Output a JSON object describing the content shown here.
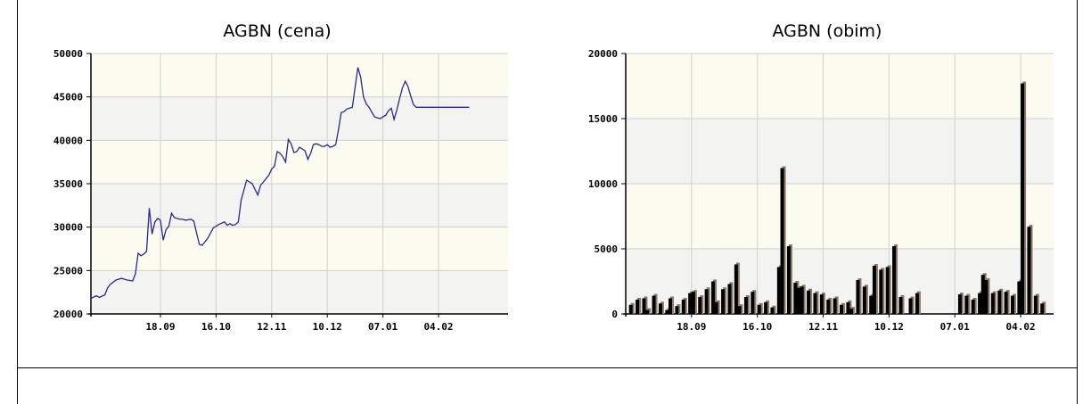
{
  "charts": [
    {
      "chart_data": {
        "type": "line",
        "title": "AGBN (cena)",
        "xlabel": "",
        "ylabel": "",
        "ylim": [
          20000,
          50000
        ],
        "yticks": [
          20000,
          25000,
          30000,
          35000,
          40000,
          45000,
          50000
        ],
        "xtick_labels": [
          "18.09",
          "16.10",
          "12.11",
          "10.12",
          "07.01",
          "04.02"
        ],
        "x_domain": [
          0,
          150
        ],
        "xtick_positions": [
          25,
          45,
          65,
          85,
          105,
          125
        ],
        "grid": true,
        "series": [
          {
            "color": "#2a2a8c",
            "x": [
              0,
              2,
              3,
              5,
              6,
              7,
              9,
              11,
              13,
              15,
              16,
              17,
              18,
              19,
              20,
              21,
              22,
              23,
              24,
              25,
              26,
              27,
              28,
              29,
              30,
              31,
              32,
              33,
              34,
              36,
              37,
              38,
              39,
              40,
              42,
              44,
              46,
              48,
              49,
              50,
              51,
              52,
              53,
              54,
              56,
              58,
              60,
              61,
              62,
              63,
              64,
              65,
              66,
              67,
              68,
              69,
              70,
              71,
              72,
              73,
              74,
              75,
              76,
              77,
              78,
              79,
              80,
              81,
              82,
              83,
              84,
              85,
              86,
              87,
              88,
              89,
              90,
              91,
              92,
              94,
              96,
              97,
              98,
              99,
              100,
              102,
              104,
              106,
              107,
              108,
              109,
              110,
              111,
              112,
              113,
              114,
              115,
              116,
              117,
              118,
              119,
              120,
              121,
              122,
              123,
              124,
              125,
              126,
              127,
              128,
              129,
              130,
              131,
              132,
              133,
              134,
              135,
              136
            ],
            "y": [
              21800,
              22100,
              21900,
              22200,
              23000,
              23400,
              23900,
              24100,
              23900,
              23800,
              24600,
              27000,
              26700,
              26900,
              27200,
              32200,
              29200,
              30600,
              31000,
              30800,
              28500,
              29700,
              30100,
              31600,
              31100,
              31000,
              30900,
              30900,
              30800,
              30900,
              30700,
              29300,
              28000,
              27900,
              28700,
              29900,
              30300,
              30600,
              30200,
              30400,
              30200,
              30300,
              30600,
              33100,
              35400,
              35000,
              33700,
              34800,
              35200,
              35600,
              36000,
              36700,
              37000,
              38700,
              38500,
              38100,
              37500,
              40100,
              39600,
              38600,
              38700,
              39200,
              39000,
              38800,
              37800,
              38500,
              39500,
              39600,
              39500,
              39300,
              39300,
              39500,
              39200,
              39300,
              39500,
              41200,
              43200,
              43300,
              43600,
              43800,
              48400,
              47300,
              45000,
              44200,
              43800,
              42700,
              42500,
              42900,
              43400,
              43700,
              42400,
              43500,
              44800,
              46000,
              46800,
              46200,
              45100,
              44100,
              43800,
              43800,
              43800,
              43800,
              43800,
              43800,
              43800,
              43800,
              43800,
              43800,
              43800,
              43800,
              43800,
              43800,
              43800,
              43800,
              43800,
              43800,
              43800,
              43800
            ]
          }
        ]
      }
    },
    {
      "chart_data": {
        "type": "bar",
        "title": "AGBN (obim)",
        "xlabel": "",
        "ylabel": "",
        "ylim": [
          0,
          20000
        ],
        "yticks": [
          0,
          5000,
          10000,
          15000,
          20000
        ],
        "xtick_labels": [
          "18.09",
          "16.10",
          "12.11",
          "10.12",
          "07.01",
          "04.02"
        ],
        "x_domain": [
          0,
          130
        ],
        "xtick_positions": [
          20,
          40,
          60,
          80,
          100,
          120
        ],
        "grid": true,
        "series": [
          {
            "color": "#000000",
            "shadow_color": "#8a7a66",
            "x": [
              1,
              3,
              5,
              6,
              8,
              10,
              12,
              13,
              15,
              17,
              19,
              20,
              22,
              24,
              26,
              27,
              29,
              31,
              33,
              34,
              36,
              38,
              40,
              42,
              44,
              46,
              47,
              49,
              51,
              52,
              53,
              55,
              57,
              59,
              61,
              63,
              65,
              67,
              68,
              70,
              72,
              74,
              75,
              77,
              79,
              81,
              83,
              86,
              88,
              90,
              91,
              93,
              95,
              97,
              99,
              101,
              103,
              105,
              107,
              108,
              109,
              111,
              113,
              115,
              117,
              119,
              120,
              122,
              124,
              126
            ],
            "values": [
              700,
              1100,
              1200,
              300,
              1400,
              800,
              300,
              1200,
              600,
              1100,
              1600,
              1700,
              1300,
              1900,
              2500,
              900,
              1900,
              2300,
              3800,
              600,
              1300,
              1700,
              700,
              900,
              500,
              3600,
              11200,
              5200,
              2400,
              2000,
              2100,
              1800,
              1600,
              1500,
              1100,
              1200,
              700,
              900,
              400,
              2600,
              2100,
              1400,
              3700,
              3400,
              3600,
              5200,
              1300,
              1200,
              1600,
              0,
              0,
              0,
              0,
              0,
              0,
              1500,
              1400,
              1100,
              1600,
              3000,
              2600,
              1600,
              1800,
              1700,
              1400,
              2500,
              17700,
              6700,
              1400,
              800
            ]
          }
        ]
      }
    }
  ]
}
